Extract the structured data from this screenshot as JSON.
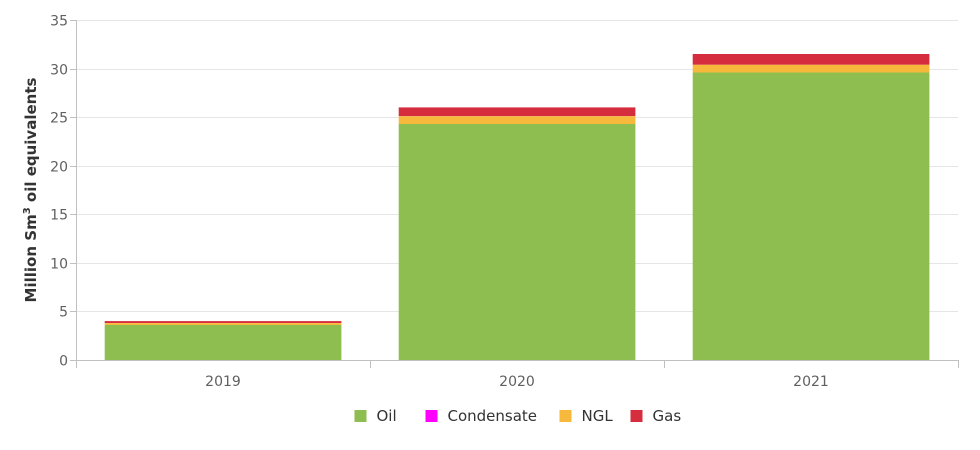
{
  "chart_data": {
    "type": "bar",
    "stacked": true,
    "categories": [
      "2019",
      "2020",
      "2021"
    ],
    "series": [
      {
        "name": "Oil",
        "color": "#8fbe50",
        "values": [
          3.6,
          24.3,
          29.6
        ]
      },
      {
        "name": "Condensate",
        "color": "#ff00ff",
        "values": [
          0,
          0,
          0
        ]
      },
      {
        "name": "NGL",
        "color": "#f6b93b",
        "values": [
          0.2,
          0.8,
          0.8
        ]
      },
      {
        "name": "Gas",
        "color": "#d62d3e",
        "values": [
          0.2,
          0.9,
          1.1
        ]
      }
    ],
    "ylabel_main": "Million Sm",
    "ylabel_sup": "3",
    "ylabel_rest": " oil equivalents",
    "ylim": [
      0,
      35
    ],
    "yticks": [
      "0",
      "5",
      "10",
      "15",
      "20",
      "25",
      "30",
      "35"
    ],
    "grid": true,
    "legend_position": "bottom"
  }
}
